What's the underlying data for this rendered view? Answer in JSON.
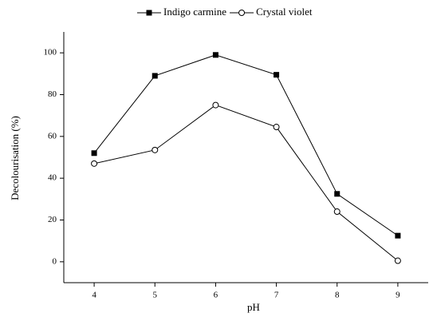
{
  "chart_data": {
    "type": "line",
    "x_label": "pH",
    "y_label": "Decolourisation (%)",
    "x": [
      4,
      5,
      6,
      7,
      8,
      9
    ],
    "series": [
      {
        "name": "Indigo carmine",
        "color": "#000000",
        "marker": "square",
        "values": [
          52,
          89,
          99,
          89.5,
          32.5,
          12.5
        ]
      },
      {
        "name": "Crystal violet",
        "color": "#000000",
        "marker": "circle-open",
        "values": [
          47,
          53.5,
          75,
          64.5,
          24,
          0.5
        ]
      }
    ],
    "xlim": [
      3.5,
      9.5
    ],
    "xticks": [
      4,
      5,
      6,
      7,
      8,
      9
    ],
    "ylim": [
      -10,
      110
    ],
    "yticks": [
      0,
      20,
      40,
      60,
      80,
      100
    ],
    "legend": "top"
  }
}
